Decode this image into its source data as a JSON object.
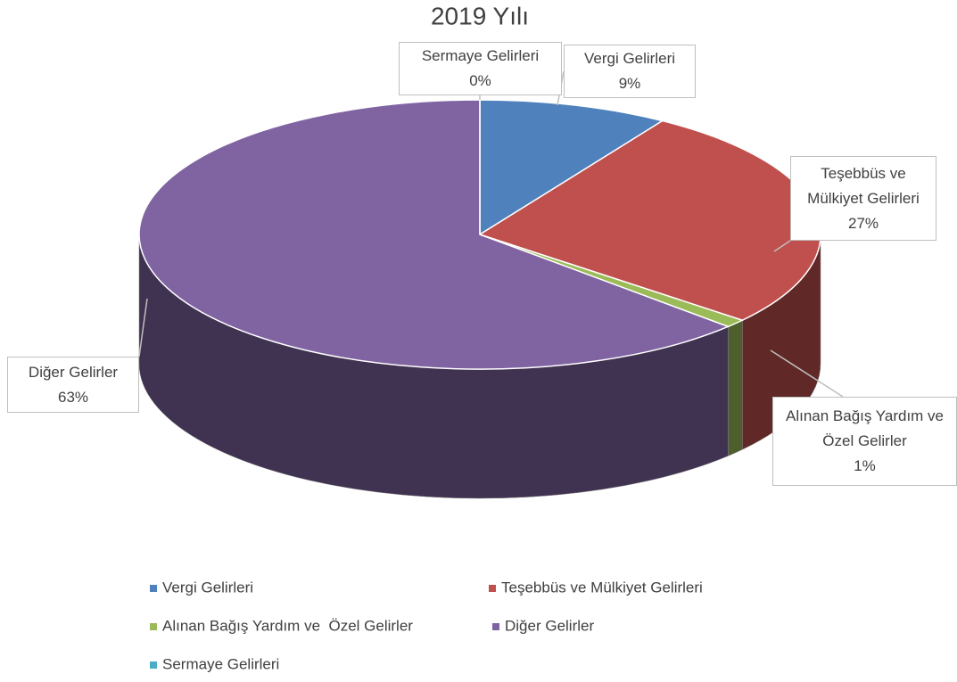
{
  "chart_data": {
    "type": "pie",
    "title": "2019 Yılı",
    "categories": [
      "Vergi Gelirleri",
      "Teşebbüs ve Mülkiyet Gelirleri",
      "Alınan Bağış Yardım ve  Özel Gelirler",
      "Diğer Gelirler",
      "Sermaye Gelirleri"
    ],
    "values": [
      9,
      27,
      1,
      63,
      0
    ],
    "value_labels": [
      "9%",
      "27%",
      "1%",
      "63%",
      "0%"
    ],
    "colors": [
      "#4f81bd",
      "#c0504d",
      "#9bbb59",
      "#8064a2",
      "#4bacc6"
    ],
    "legend": "bottom"
  }
}
